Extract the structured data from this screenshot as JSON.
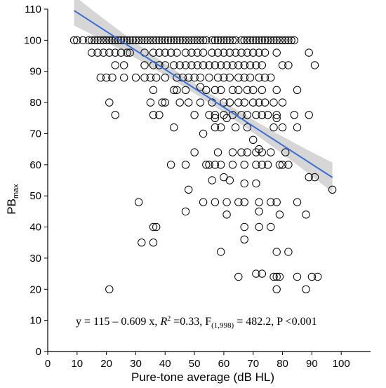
{
  "chart_data": {
    "type": "scatter",
    "title": "",
    "xlabel": "Pure-tone average (dB HL)",
    "ylabel": "PB",
    "ylabel_sub": "max",
    "xlim": [
      0,
      110
    ],
    "ylim": [
      0,
      110
    ],
    "x_ticks": [
      0,
      10,
      20,
      30,
      40,
      50,
      60,
      70,
      80,
      90,
      100
    ],
    "y_ticks": [
      0,
      10,
      20,
      30,
      40,
      50,
      60,
      70,
      80,
      90,
      100,
      110
    ],
    "grid": false,
    "legend": "none",
    "colors": {
      "points": "#000000",
      "fit_line": "#3b6fd6",
      "ci_band": "#cfcfcf"
    },
    "annotation": {
      "prefix": "y = 115 – 0.609 x, ",
      "r": "R",
      "r_sup": "2",
      "r_rest": " =0.33, F",
      "f_sub": "(1,998)",
      "rest": " = 482.2, P <0.001"
    },
    "fit": {
      "intercept": 115,
      "slope": -0.609,
      "x_range": [
        9,
        97
      ]
    },
    "points": [
      [
        9,
        100
      ],
      [
        10,
        100
      ],
      [
        12,
        100
      ],
      [
        14,
        100
      ],
      [
        15,
        100
      ],
      [
        16,
        100
      ],
      [
        17,
        100
      ],
      [
        18,
        100
      ],
      [
        19,
        100
      ],
      [
        20,
        100
      ],
      [
        21,
        100
      ],
      [
        22,
        100
      ],
      [
        23,
        100
      ],
      [
        24,
        100
      ],
      [
        25,
        100
      ],
      [
        26,
        100
      ],
      [
        27,
        100
      ],
      [
        28,
        100
      ],
      [
        29,
        100
      ],
      [
        30,
        100
      ],
      [
        31,
        100
      ],
      [
        32,
        100
      ],
      [
        33,
        100
      ],
      [
        34,
        100
      ],
      [
        35,
        100
      ],
      [
        36,
        100
      ],
      [
        37,
        100
      ],
      [
        38,
        100
      ],
      [
        39,
        100
      ],
      [
        40,
        100
      ],
      [
        41,
        100
      ],
      [
        42,
        100
      ],
      [
        43,
        100
      ],
      [
        44,
        100
      ],
      [
        45,
        100
      ],
      [
        46,
        100
      ],
      [
        47,
        100
      ],
      [
        48,
        100
      ],
      [
        49,
        100
      ],
      [
        50,
        100
      ],
      [
        51,
        100
      ],
      [
        52,
        100
      ],
      [
        53,
        100
      ],
      [
        54,
        100
      ],
      [
        56,
        100
      ],
      [
        57,
        100
      ],
      [
        58,
        100
      ],
      [
        59,
        100
      ],
      [
        60,
        100
      ],
      [
        61,
        100
      ],
      [
        62,
        100
      ],
      [
        63,
        100
      ],
      [
        64,
        100
      ],
      [
        66,
        100
      ],
      [
        67,
        100
      ],
      [
        68,
        100
      ],
      [
        69,
        100
      ],
      [
        70,
        100
      ],
      [
        71,
        100
      ],
      [
        72,
        100
      ],
      [
        73,
        100
      ],
      [
        74,
        100
      ],
      [
        75,
        100
      ],
      [
        76,
        100
      ],
      [
        77,
        100
      ],
      [
        78,
        100
      ],
      [
        79,
        100
      ],
      [
        80,
        100
      ],
      [
        81,
        100
      ],
      [
        82,
        100
      ],
      [
        83,
        100
      ],
      [
        84,
        100
      ],
      [
        15,
        96
      ],
      [
        17,
        96
      ],
      [
        19,
        96
      ],
      [
        21,
        96
      ],
      [
        23,
        96
      ],
      [
        25,
        96
      ],
      [
        27,
        96
      ],
      [
        28,
        96
      ],
      [
        33,
        96
      ],
      [
        36,
        96
      ],
      [
        38,
        96
      ],
      [
        40,
        96
      ],
      [
        42,
        96
      ],
      [
        44,
        96
      ],
      [
        47,
        96
      ],
      [
        49,
        96
      ],
      [
        51,
        96
      ],
      [
        53,
        96
      ],
      [
        56,
        96
      ],
      [
        58,
        96
      ],
      [
        60,
        96
      ],
      [
        62,
        96
      ],
      [
        64,
        96
      ],
      [
        66,
        96
      ],
      [
        68,
        96
      ],
      [
        70,
        96
      ],
      [
        72,
        96
      ],
      [
        74,
        96
      ],
      [
        78,
        96
      ],
      [
        89,
        96
      ],
      [
        23,
        92
      ],
      [
        26,
        92
      ],
      [
        33,
        92
      ],
      [
        36,
        92
      ],
      [
        38,
        92
      ],
      [
        40,
        92
      ],
      [
        43,
        92
      ],
      [
        45,
        92
      ],
      [
        47,
        92
      ],
      [
        49,
        92
      ],
      [
        51,
        92
      ],
      [
        53,
        92
      ],
      [
        55,
        92
      ],
      [
        57,
        92
      ],
      [
        59,
        92
      ],
      [
        61,
        92
      ],
      [
        63,
        92
      ],
      [
        65,
        92
      ],
      [
        67,
        92
      ],
      [
        69,
        92
      ],
      [
        71,
        92
      ],
      [
        73,
        92
      ],
      [
        80,
        92
      ],
      [
        82,
        92
      ],
      [
        91,
        92
      ],
      [
        18,
        88
      ],
      [
        20,
        88
      ],
      [
        22,
        88
      ],
      [
        26,
        88
      ],
      [
        30,
        88
      ],
      [
        33,
        88
      ],
      [
        35,
        88
      ],
      [
        37,
        88
      ],
      [
        40,
        88
      ],
      [
        44,
        88
      ],
      [
        46,
        88
      ],
      [
        48,
        88
      ],
      [
        50,
        88
      ],
      [
        52,
        88
      ],
      [
        55,
        88
      ],
      [
        58,
        88
      ],
      [
        60,
        88
      ],
      [
        62,
        88
      ],
      [
        65,
        88
      ],
      [
        67,
        88
      ],
      [
        69,
        88
      ],
      [
        72,
        88
      ],
      [
        74,
        88
      ],
      [
        76,
        88
      ],
      [
        52,
        85
      ],
      [
        54,
        84
      ],
      [
        36,
        84
      ],
      [
        43,
        84
      ],
      [
        44,
        84
      ],
      [
        47,
        84
      ],
      [
        57,
        84
      ],
      [
        59,
        84
      ],
      [
        63,
        84
      ],
      [
        65,
        84
      ],
      [
        68,
        84
      ],
      [
        70,
        84
      ],
      [
        73,
        84
      ],
      [
        78,
        84
      ],
      [
        85,
        84
      ],
      [
        21,
        80
      ],
      [
        35,
        80
      ],
      [
        39,
        80
      ],
      [
        40,
        80
      ],
      [
        45,
        80
      ],
      [
        48,
        80
      ],
      [
        52,
        80
      ],
      [
        56,
        80
      ],
      [
        60,
        80
      ],
      [
        62,
        80
      ],
      [
        65,
        80
      ],
      [
        67,
        80
      ],
      [
        70,
        80
      ],
      [
        72,
        80
      ],
      [
        74,
        80
      ],
      [
        77,
        80
      ],
      [
        80,
        80
      ],
      [
        23,
        76
      ],
      [
        36,
        76
      ],
      [
        38,
        76
      ],
      [
        50,
        76
      ],
      [
        55,
        76
      ],
      [
        57,
        76
      ],
      [
        60,
        76
      ],
      [
        63,
        76
      ],
      [
        66,
        76
      ],
      [
        68,
        76
      ],
      [
        71,
        76
      ],
      [
        73,
        76
      ],
      [
        75,
        76
      ],
      [
        78,
        76
      ],
      [
        84,
        76
      ],
      [
        89,
        76
      ],
      [
        57,
        75
      ],
      [
        61,
        75
      ],
      [
        78,
        75
      ],
      [
        43,
        72
      ],
      [
        57,
        72
      ],
      [
        59,
        72
      ],
      [
        64,
        72
      ],
      [
        68,
        72
      ],
      [
        77,
        72
      ],
      [
        80,
        72
      ],
      [
        85,
        72
      ],
      [
        53,
        70
      ],
      [
        70,
        68
      ],
      [
        50,
        64
      ],
      [
        58,
        64
      ],
      [
        63,
        64
      ],
      [
        66,
        64
      ],
      [
        68,
        64
      ],
      [
        71,
        64
      ],
      [
        73,
        64
      ],
      [
        76,
        64
      ],
      [
        81,
        64
      ],
      [
        72,
        65
      ],
      [
        42,
        60
      ],
      [
        47,
        60
      ],
      [
        54,
        60
      ],
      [
        55,
        60
      ],
      [
        57,
        60
      ],
      [
        59,
        60
      ],
      [
        63,
        60
      ],
      [
        67,
        60
      ],
      [
        71,
        60
      ],
      [
        73,
        60
      ],
      [
        75,
        60
      ],
      [
        79,
        60
      ],
      [
        80,
        60
      ],
      [
        82,
        60
      ],
      [
        60,
        56
      ],
      [
        62,
        55
      ],
      [
        56,
        55
      ],
      [
        67,
        54
      ],
      [
        71,
        54
      ],
      [
        89,
        56
      ],
      [
        91,
        56
      ],
      [
        97,
        52
      ],
      [
        48,
        52
      ],
      [
        31,
        48
      ],
      [
        53,
        48
      ],
      [
        57,
        48
      ],
      [
        61,
        48
      ],
      [
        65,
        48
      ],
      [
        67,
        48
      ],
      [
        72,
        48
      ],
      [
        76,
        48
      ],
      [
        78,
        48
      ],
      [
        85,
        48
      ],
      [
        47,
        45
      ],
      [
        61,
        44
      ],
      [
        72,
        45
      ],
      [
        79,
        44
      ],
      [
        88,
        44
      ],
      [
        36,
        40
      ],
      [
        37,
        40
      ],
      [
        67,
        40
      ],
      [
        72,
        40
      ],
      [
        76,
        40
      ],
      [
        67,
        36
      ],
      [
        32,
        35
      ],
      [
        36,
        35
      ],
      [
        59,
        32
      ],
      [
        78,
        32
      ],
      [
        82,
        32
      ],
      [
        71,
        25
      ],
      [
        73,
        25
      ],
      [
        77,
        24
      ],
      [
        78,
        24
      ],
      [
        79,
        24
      ],
      [
        85,
        24
      ],
      [
        90,
        24
      ],
      [
        92,
        24
      ],
      [
        65,
        24
      ],
      [
        21,
        20
      ],
      [
        78,
        20
      ],
      [
        88,
        20
      ]
    ]
  }
}
